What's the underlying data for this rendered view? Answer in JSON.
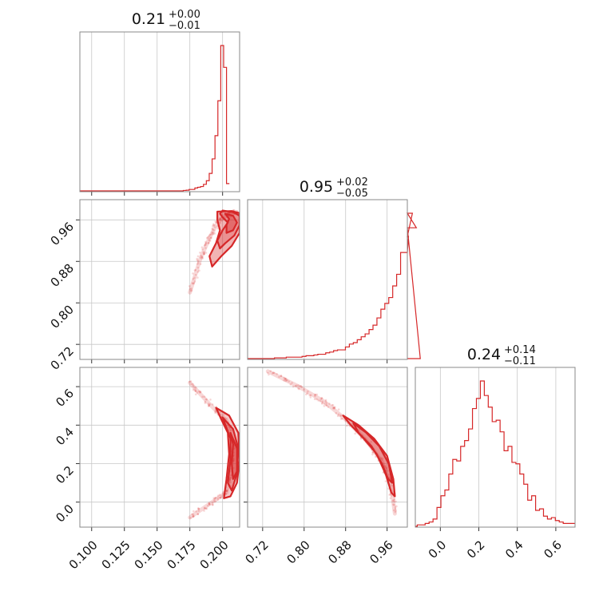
{
  "chart_data": {
    "type": "corner",
    "color": "#d62728",
    "grid": true,
    "parameters": [
      {
        "title": {
          "median": "0.21",
          "plus": "+0.00",
          "minus": "−0.01"
        },
        "range": [
          0.091,
          0.213
        ],
        "ticks": [
          0.1,
          0.125,
          0.15,
          0.175,
          0.2
        ],
        "tick_labels": [
          "0.100",
          "0.125",
          "0.150",
          "0.175",
          "0.200"
        ],
        "hist": {
          "edges_start": 0.17,
          "bin_width": 0.0022,
          "counts": [
            0.3,
            0.5,
            1,
            1,
            2,
            2.5,
            3,
            4.5,
            7,
            12,
            22,
            38,
            62,
            100,
            85,
            5
          ]
        }
      },
      {
        "title": {
          "median": "0.95",
          "plus": "+0.02",
          "minus": "−0.05"
        },
        "range": [
          0.691,
          0.999
        ],
        "ticks": [
          0.72,
          0.8,
          0.88,
          0.96
        ],
        "tick_labels": [
          "0.72",
          "0.80",
          "0.88",
          "0.96"
        ],
        "hist": {
          "edges_start": 0.72,
          "bin_width": 0.0076,
          "counts": [
            0,
            0,
            0,
            0.5,
            0.5,
            0.5,
            1,
            1,
            1,
            1,
            1.5,
            2,
            2,
            2.5,
            3,
            3,
            4,
            4.5,
            5.5,
            6,
            6,
            8,
            10,
            11,
            13,
            15,
            17,
            20,
            23,
            28,
            34,
            38,
            42,
            50,
            58,
            73,
            73,
            84,
            100,
            90,
            0
          ]
        }
      },
      {
        "title": {
          "median": "0.24",
          "plus": "+0.14",
          "minus": "−0.11"
        },
        "range": [
          -0.13,
          0.7
        ],
        "ticks": [
          0.0,
          0.2,
          0.4,
          0.6
        ],
        "tick_labels": [
          "0.0",
          "0.2",
          "0.4",
          "0.6"
        ],
        "hist": {
          "edges_start": -0.12,
          "bin_width": 0.0205,
          "counts": [
            1,
            1,
            2,
            3,
            5,
            13,
            21,
            25,
            36,
            46,
            45,
            55,
            59,
            67,
            81,
            88,
            100,
            90,
            82,
            72,
            73,
            65,
            52,
            55,
            44,
            43,
            36,
            29,
            18,
            21,
            11,
            12,
            7,
            5,
            6,
            4,
            3,
            2,
            2,
            2
          ]
        }
      }
    ],
    "pairs": [
      {
        "x_param": 0,
        "y_param": 1,
        "ridge": [
          [
            0.2105,
            0.975
          ],
          [
            0.205,
            0.972
          ],
          [
            0.197,
            0.958
          ],
          [
            0.19,
            0.925
          ],
          [
            0.183,
            0.885
          ],
          [
            0.175,
            0.82
          ]
        ],
        "half_width": [
          0.004,
          0.02
        ],
        "contours": [
          [
            [
              0.2,
              0.978
            ],
            [
              0.208,
              0.975
            ],
            [
              0.213,
              0.968
            ],
            [
              0.213,
              0.95
            ],
            [
              0.209,
              0.93
            ],
            [
              0.202,
              0.915
            ],
            [
              0.198,
              0.905
            ],
            [
              0.196,
              0.92
            ],
            [
              0.2,
              0.94
            ],
            [
              0.204,
              0.955
            ],
            [
              0.2,
              0.965
            ],
            [
              0.198,
              0.972
            ],
            [
              0.2,
              0.978
            ]
          ],
          [
            [
              0.196,
              0.976
            ],
            [
              0.207,
              0.977
            ],
            [
              0.213,
              0.973
            ],
            [
              0.213,
              0.935
            ],
            [
              0.207,
              0.91
            ],
            [
              0.199,
              0.89
            ],
            [
              0.192,
              0.87
            ],
            [
              0.19,
              0.89
            ],
            [
              0.195,
              0.915
            ],
            [
              0.198,
              0.94
            ],
            [
              0.196,
              0.96
            ],
            [
              0.196,
              0.976
            ]
          ],
          [
            [
              0.202,
              0.972
            ],
            [
              0.208,
              0.968
            ],
            [
              0.211,
              0.955
            ],
            [
              0.208,
              0.94
            ],
            [
              0.203,
              0.935
            ],
            [
              0.203,
              0.95
            ],
            [
              0.205,
              0.962
            ],
            [
              0.202,
              0.972
            ]
          ]
        ]
      },
      {
        "x_param": 0,
        "y_param": 2,
        "ridge": [
          [
            0.175,
            0.62
          ],
          [
            0.19,
            0.51
          ],
          [
            0.203,
            0.42
          ],
          [
            0.208,
            0.3
          ],
          [
            0.207,
            0.2
          ],
          [
            0.203,
            0.05
          ],
          [
            0.192,
            0.0
          ],
          [
            0.175,
            -0.08
          ]
        ],
        "half_width": [
          0.004,
          0.03
        ],
        "contours": [
          [
            [
              0.195,
              0.49
            ],
            [
              0.205,
              0.45
            ],
            [
              0.212,
              0.36
            ],
            [
              0.213,
              0.22
            ],
            [
              0.211,
              0.1
            ],
            [
              0.206,
              0.03
            ],
            [
              0.201,
              0.02
            ],
            [
              0.203,
              0.12
            ],
            [
              0.205,
              0.25
            ],
            [
              0.204,
              0.36
            ],
            [
              0.199,
              0.43
            ],
            [
              0.195,
              0.49
            ]
          ],
          [
            [
              0.2,
              0.44
            ],
            [
              0.208,
              0.38
            ],
            [
              0.212,
              0.28
            ],
            [
              0.211,
              0.15
            ],
            [
              0.207,
              0.06
            ],
            [
              0.204,
              0.1
            ],
            [
              0.206,
              0.22
            ],
            [
              0.206,
              0.33
            ],
            [
              0.2,
              0.44
            ]
          ],
          [
            [
              0.206,
              0.36
            ],
            [
              0.211,
              0.28
            ],
            [
              0.211,
              0.16
            ],
            [
              0.208,
              0.12
            ],
            [
              0.207,
              0.2
            ],
            [
              0.208,
              0.3
            ],
            [
              0.206,
              0.36
            ]
          ]
        ]
      },
      {
        "x_param": 1,
        "y_param": 2,
        "ridge": [
          [
            0.73,
            0.68
          ],
          [
            0.79,
            0.6
          ],
          [
            0.84,
            0.52
          ],
          [
            0.88,
            0.43
          ],
          [
            0.92,
            0.32
          ],
          [
            0.95,
            0.21
          ],
          [
            0.968,
            0.08
          ],
          [
            0.975,
            -0.06
          ]
        ],
        "half_width": [
          0.004,
          0.018
        ],
        "contours": [
          [
            [
              0.875,
              0.45
            ],
            [
              0.905,
              0.4
            ],
            [
              0.935,
              0.33
            ],
            [
              0.96,
              0.24
            ],
            [
              0.972,
              0.12
            ],
            [
              0.975,
              0.03
            ],
            [
              0.968,
              0.05
            ],
            [
              0.958,
              0.14
            ],
            [
              0.94,
              0.25
            ],
            [
              0.915,
              0.33
            ],
            [
              0.89,
              0.4
            ],
            [
              0.875,
              0.45
            ]
          ],
          [
            [
              0.895,
              0.41
            ],
            [
              0.92,
              0.36
            ],
            [
              0.945,
              0.29
            ],
            [
              0.963,
              0.2
            ],
            [
              0.97,
              0.1
            ],
            [
              0.962,
              0.12
            ],
            [
              0.95,
              0.2
            ],
            [
              0.93,
              0.29
            ],
            [
              0.905,
              0.36
            ],
            [
              0.895,
              0.41
            ]
          ]
        ]
      }
    ]
  }
}
